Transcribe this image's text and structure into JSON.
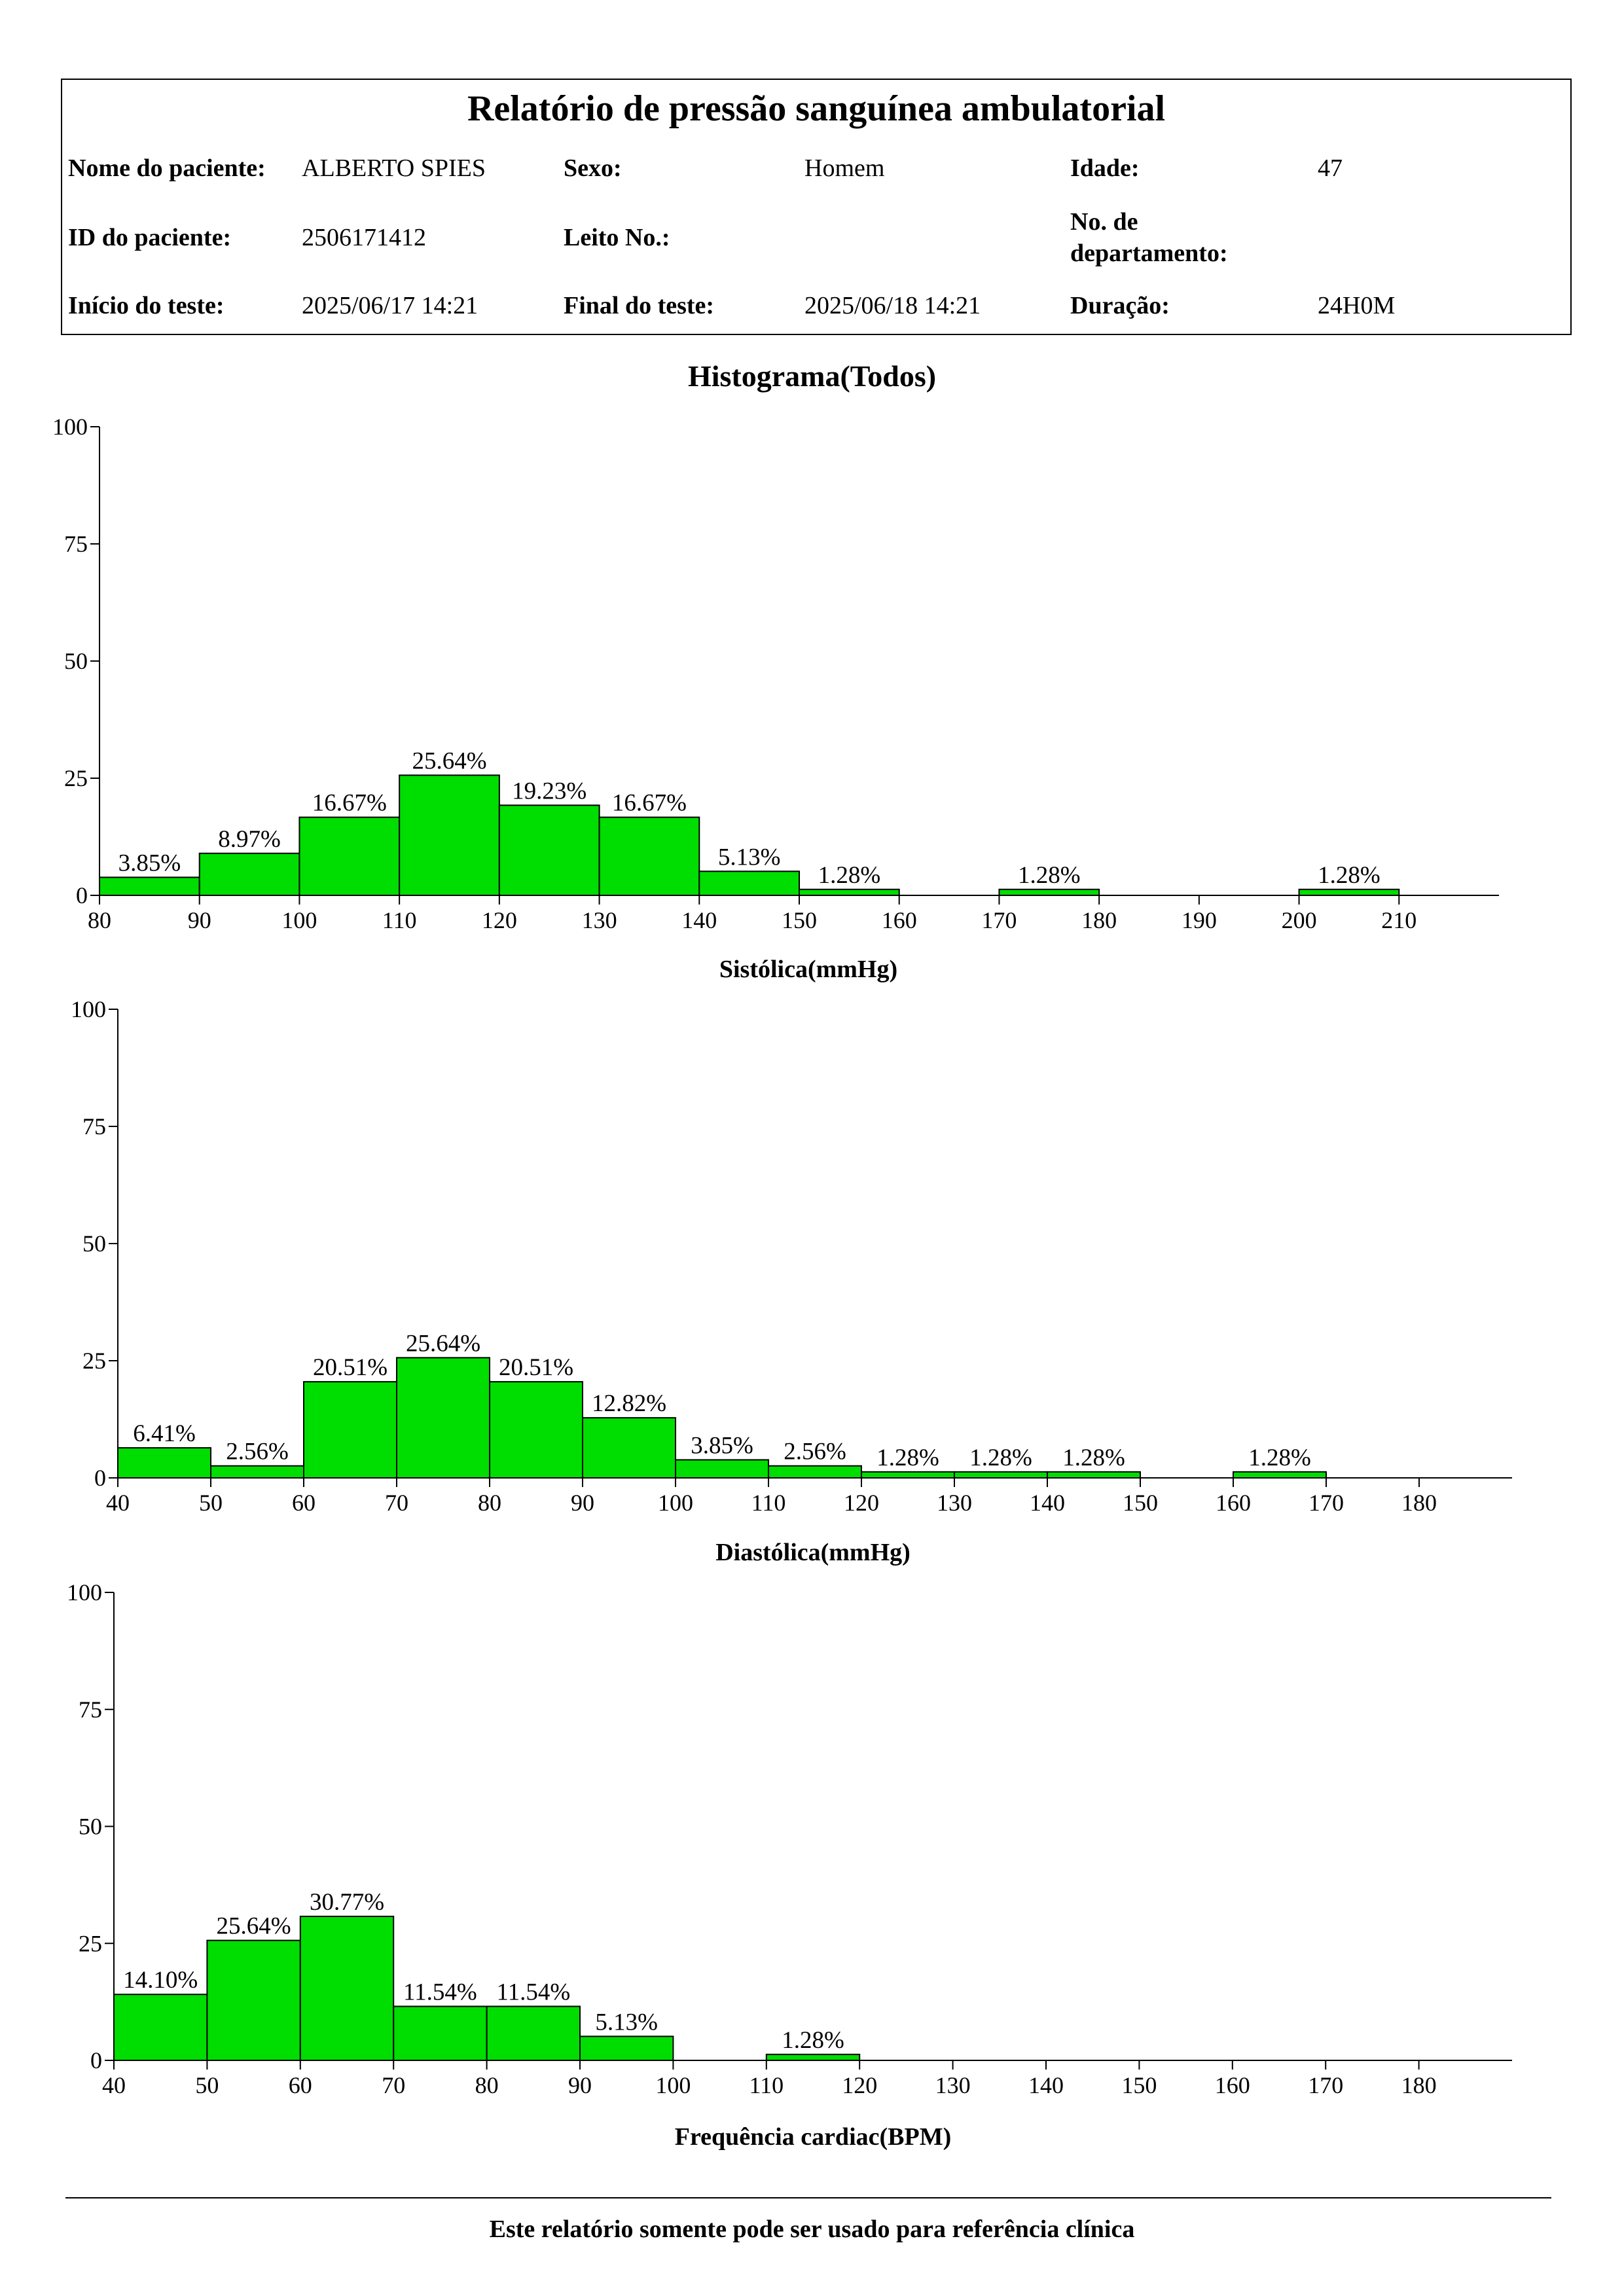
{
  "header": {
    "title": "Relatório de pressão sanguínea ambulatorial",
    "fields": {
      "patient_name_label": "Nome do paciente:",
      "patient_name": "ALBERTO SPIES",
      "sex_label": "Sexo:",
      "sex": "Homem",
      "age_label": "Idade:",
      "age": "47",
      "patient_id_label": "ID do paciente:",
      "patient_id": "2506171412",
      "bed_label": "Leito No.:",
      "bed": "",
      "dept_label_line1": "No. de",
      "dept_label_line2": "departamento:",
      "dept": "",
      "start_label": "Início do teste:",
      "start": "2025/06/17 14:21",
      "end_label": "Final do teste:",
      "end": "2025/06/18 14:21",
      "duration_label": "Duração:",
      "duration": "24H0M"
    }
  },
  "charts_title": "Histograma(Todos)",
  "footer": {
    "note": "Este relatório somente pode ser usado para referência clínica"
  },
  "colors": {
    "bar_fill": "#00DD00",
    "bar_stroke": "#000000"
  },
  "chart_data": [
    {
      "type": "bar",
      "title": "",
      "xlabel": "Sistólica(mmHg)",
      "ylabel": "",
      "ylim": [
        0,
        100
      ],
      "y_ticks": [
        0,
        25,
        50,
        75,
        100
      ],
      "x_range": [
        80,
        220
      ],
      "x_ticks": [
        80,
        90,
        100,
        110,
        120,
        130,
        140,
        150,
        160,
        170,
        180,
        190,
        200,
        210
      ],
      "bins": [
        {
          "from": 80,
          "to": 90,
          "value": 3.85,
          "label": "3.85%"
        },
        {
          "from": 90,
          "to": 100,
          "value": 8.97,
          "label": "8.97%"
        },
        {
          "from": 100,
          "to": 110,
          "value": 16.67,
          "label": "16.67%"
        },
        {
          "from": 110,
          "to": 120,
          "value": 25.64,
          "label": "25.64%"
        },
        {
          "from": 120,
          "to": 130,
          "value": 19.23,
          "label": "19.23%"
        },
        {
          "from": 130,
          "to": 140,
          "value": 16.67,
          "label": "16.67%"
        },
        {
          "from": 140,
          "to": 150,
          "value": 5.13,
          "label": "5.13%"
        },
        {
          "from": 150,
          "to": 160,
          "value": 1.28,
          "label": "1.28%"
        },
        {
          "from": 170,
          "to": 180,
          "value": 1.28,
          "label": "1.28%"
        },
        {
          "from": 200,
          "to": 210,
          "value": 1.28,
          "label": "1.28%"
        }
      ]
    },
    {
      "type": "bar",
      "title": "",
      "xlabel": "Diastólica(mmHg)",
      "ylabel": "",
      "ylim": [
        0,
        100
      ],
      "y_ticks": [
        0,
        25,
        50,
        75,
        100
      ],
      "x_range": [
        40,
        190
      ],
      "x_ticks": [
        40,
        50,
        60,
        70,
        80,
        90,
        100,
        110,
        120,
        130,
        140,
        150,
        160,
        170,
        180
      ],
      "bins": [
        {
          "from": 40,
          "to": 50,
          "value": 6.41,
          "label": "6.41%"
        },
        {
          "from": 50,
          "to": 60,
          "value": 2.56,
          "label": "2.56%"
        },
        {
          "from": 60,
          "to": 70,
          "value": 20.51,
          "label": "20.51%"
        },
        {
          "from": 70,
          "to": 80,
          "value": 25.64,
          "label": "25.64%"
        },
        {
          "from": 80,
          "to": 90,
          "value": 20.51,
          "label": "20.51%"
        },
        {
          "from": 90,
          "to": 100,
          "value": 12.82,
          "label": "12.82%"
        },
        {
          "from": 100,
          "to": 110,
          "value": 3.85,
          "label": "3.85%"
        },
        {
          "from": 110,
          "to": 120,
          "value": 2.56,
          "label": "2.56%"
        },
        {
          "from": 120,
          "to": 130,
          "value": 1.28,
          "label": "1.28%"
        },
        {
          "from": 130,
          "to": 140,
          "value": 1.28,
          "label": "1.28%"
        },
        {
          "from": 140,
          "to": 150,
          "value": 1.28,
          "label": "1.28%"
        },
        {
          "from": 160,
          "to": 170,
          "value": 1.28,
          "label": "1.28%"
        }
      ]
    },
    {
      "type": "bar",
      "title": "",
      "xlabel": "Frequência cardiac(BPM)",
      "ylabel": "",
      "ylim": [
        0,
        100
      ],
      "y_ticks": [
        0,
        25,
        50,
        75,
        100
      ],
      "x_range": [
        40,
        190
      ],
      "x_ticks": [
        40,
        50,
        60,
        70,
        80,
        90,
        100,
        110,
        120,
        130,
        140,
        150,
        160,
        170,
        180
      ],
      "bins": [
        {
          "from": 40,
          "to": 50,
          "value": 14.1,
          "label": "14.10%"
        },
        {
          "from": 50,
          "to": 60,
          "value": 25.64,
          "label": "25.64%"
        },
        {
          "from": 60,
          "to": 70,
          "value": 30.77,
          "label": "30.77%"
        },
        {
          "from": 70,
          "to": 80,
          "value": 11.54,
          "label": "11.54%"
        },
        {
          "from": 80,
          "to": 90,
          "value": 11.54,
          "label": "11.54%"
        },
        {
          "from": 90,
          "to": 100,
          "value": 5.13,
          "label": "5.13%"
        },
        {
          "from": 110,
          "to": 120,
          "value": 1.28,
          "label": "1.28%"
        }
      ]
    }
  ]
}
